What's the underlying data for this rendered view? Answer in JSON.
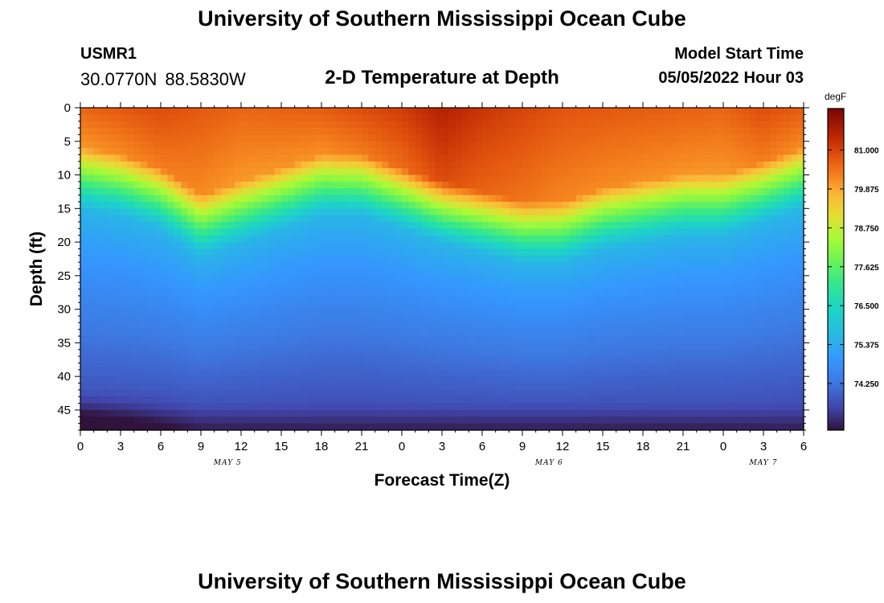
{
  "header": {
    "title": "University of Southern Mississippi Ocean Cube",
    "station": "USMR1",
    "lat": "30.0770N",
    "lon": "88.5830W",
    "subtitle": "2-D Temperature at Depth",
    "model_label": "Model Start Time",
    "model_date": "05/05/2022",
    "model_hour": "Hour 03"
  },
  "footer": {
    "title": "University of Southern Mississippi Ocean Cube"
  },
  "chart_data": {
    "type": "heatmap",
    "title": "2-D Temperature at Depth",
    "xlabel": "Forecast Time(Z)",
    "ylabel": "Depth (ft)",
    "x_tick_labels": [
      "0",
      "3",
      "6",
      "9",
      "12",
      "15",
      "18",
      "21",
      "0",
      "3",
      "6",
      "9",
      "12",
      "15",
      "18",
      "21",
      "0",
      "3",
      "6"
    ],
    "x_range_hours": [
      0,
      54
    ],
    "date_labels": [
      {
        "label": "MAY 5",
        "hour": 11
      },
      {
        "label": "MAY 6",
        "hour": 35
      },
      {
        "label": "MAY 7",
        "hour": 51
      }
    ],
    "y_tick_labels": [
      "0",
      "5",
      "10",
      "15",
      "20",
      "25",
      "30",
      "35",
      "40",
      "45"
    ],
    "y_range_ft": [
      0,
      48
    ],
    "colorbar": {
      "units": "degF",
      "range": [
        72.9,
        82.2
      ],
      "tick_values": [
        81.0,
        79.875,
        78.75,
        77.625,
        76.5,
        75.375,
        74.25
      ],
      "tick_labels": [
        "81.000",
        "79.875",
        "78.750",
        "77.625",
        "76.500",
        "75.375",
        "74.250"
      ]
    },
    "thermocline_depth_ft": {
      "hours": [
        0,
        3,
        6,
        9,
        12,
        15,
        18,
        21,
        24,
        27,
        30,
        33,
        36,
        39,
        42,
        45,
        48,
        51,
        54
      ],
      "values": [
        13,
        14,
        16,
        20,
        18,
        16,
        14,
        14,
        16,
        18,
        19.5,
        21,
        21,
        19,
        18,
        17,
        17,
        15,
        13
      ]
    },
    "surface_temp_degF": {
      "hours": [
        0,
        6,
        12,
        18,
        24,
        27,
        30,
        36,
        42,
        48,
        51,
        54
      ],
      "values": [
        80.6,
        80.9,
        80.6,
        80.7,
        81.1,
        81.5,
        81.2,
        80.8,
        80.7,
        80.6,
        80.9,
        80.7
      ]
    },
    "bottom_temp_degF": 73.5,
    "bottom_cold_patch": {
      "hour_range": [
        0,
        5
      ],
      "depth_range_ft": [
        45,
        48
      ],
      "temp_degF": 72.9
    }
  }
}
